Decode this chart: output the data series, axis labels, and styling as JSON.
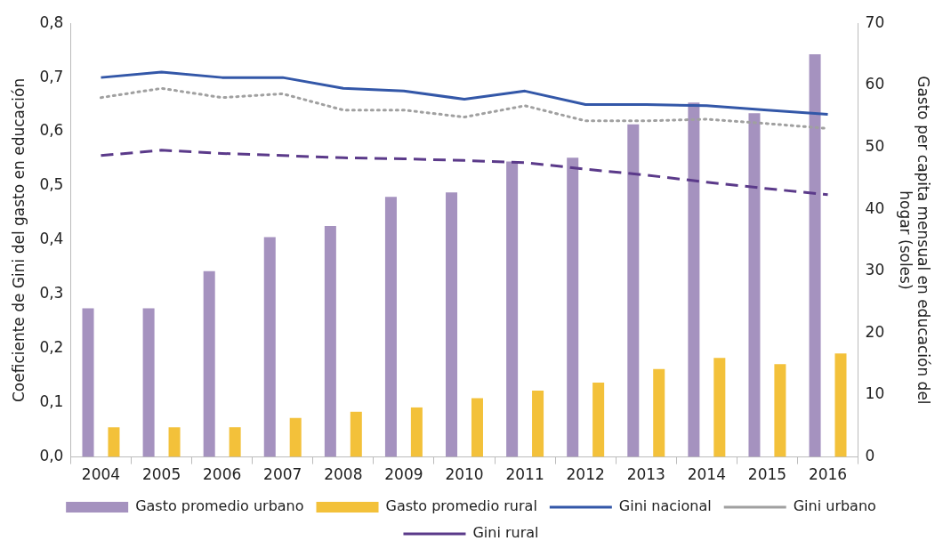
{
  "chart_data": {
    "type": "bar",
    "categories": [
      "2004",
      "2005",
      "2006",
      "2007",
      "2008",
      "2009",
      "2010",
      "2011",
      "2012",
      "2013",
      "2014",
      "2015",
      "2016"
    ],
    "ylabel": "Coeficiente de Gini del gasto en educación",
    "y2label": "Gasto per capita mensual en educación del hogar (soles)",
    "ylim": [
      0,
      0.8
    ],
    "yticks": [
      {
        "value": 0,
        "label": "0,0"
      },
      {
        "value": 0.1,
        "label": "0,1"
      },
      {
        "value": 0.2,
        "label": "0,2"
      },
      {
        "value": 0.3,
        "label": "0,3"
      },
      {
        "value": 0.4,
        "label": "0,4"
      },
      {
        "value": 0.5,
        "label": "0,5"
      },
      {
        "value": 0.6,
        "label": "0,6"
      },
      {
        "value": 0.7,
        "label": "0,7"
      },
      {
        "value": 0.8,
        "label": "0,8"
      }
    ],
    "y2lim": [
      0,
      70
    ],
    "y2ticks": [
      0,
      10,
      20,
      30,
      40,
      50,
      60,
      70
    ],
    "grid": false,
    "legend": "bottom",
    "series": [
      {
        "name": "Gasto promedio urbano",
        "axis": "y2",
        "color": "#a592bf",
        "values": [
          24,
          24,
          30,
          35.5,
          37.3,
          42,
          42.7,
          47.7,
          48.3,
          53.7,
          57.2,
          55.5,
          65
        ]
      },
      {
        "name": "Gasto promedio rural",
        "axis": "y2",
        "color": "#f3c13a",
        "values": [
          4.8,
          4.8,
          4.8,
          6.3,
          7.3,
          8,
          9.5,
          10.7,
          12,
          14.2,
          16,
          15,
          16.7
        ]
      },
      {
        "name": "Gini nacional",
        "type": "line",
        "color": "#3357a8",
        "line_style": "solid",
        "marker": "none",
        "values": [
          0.7,
          0.71,
          0.7,
          0.7,
          0.68,
          0.675,
          0.66,
          0.675,
          0.65,
          0.65,
          0.648,
          0.64,
          0.632
        ]
      },
      {
        "name": "Gini urbano",
        "type": "line",
        "color": "#a0a0a0",
        "line_style": "dotted",
        "marker": "none",
        "values": [
          0.663,
          0.68,
          0.663,
          0.67,
          0.64,
          0.64,
          0.627,
          0.648,
          0.62,
          0.62,
          0.623,
          0.615,
          0.606
        ]
      },
      {
        "name": "Gini rural",
        "type": "line",
        "color": "#5b3a8a",
        "line_style": "dashed",
        "marker": "none",
        "values": [
          0.556,
          0.566,
          0.56,
          0.556,
          0.552,
          0.55,
          0.547,
          0.543,
          0.531,
          0.52,
          0.507,
          0.495,
          0.484
        ]
      }
    ]
  }
}
